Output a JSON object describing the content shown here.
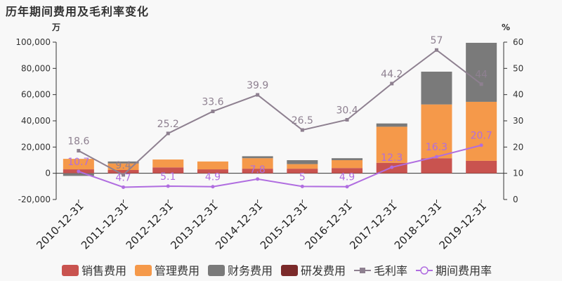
{
  "title": "历年期间费用及毛利率变化",
  "chart_data": {
    "type": "bar",
    "categories": [
      "2010-12-31",
      "2011-12-31",
      "2012-12-31",
      "2013-12-31",
      "2014-12-31",
      "2015-12-31",
      "2016-12-31",
      "2017-12-31",
      "2018-12-31",
      "2019-12-31"
    ],
    "left_axis": {
      "unit": "万",
      "ylim": [
        -20000,
        100000
      ],
      "ticks": [
        "-20,000",
        "0",
        "20,000",
        "40,000",
        "60,000",
        "80,000",
        "100,000"
      ]
    },
    "right_axis": {
      "unit": "%",
      "ylim": [
        0,
        60
      ],
      "ticks": [
        "0",
        "10",
        "20",
        "30",
        "40",
        "50",
        "60"
      ]
    },
    "series": [
      {
        "name": "销售费用",
        "kind": "bar",
        "color": "#c9534f",
        "values": [
          3000,
          2500,
          4500,
          3000,
          3500,
          3500,
          4000,
          8000,
          11500,
          9500
        ]
      },
      {
        "name": "管理费用",
        "kind": "bar",
        "color": "#f5994a",
        "values": [
          8000,
          5000,
          6000,
          6000,
          8000,
          3500,
          6000,
          27500,
          41000,
          45000
        ]
      },
      {
        "name": "财务费用",
        "kind": "bar",
        "color": "#7a7a7a",
        "values": [
          -2000,
          1500,
          0,
          0,
          1500,
          3000,
          1500,
          2500,
          25000,
          45000
        ]
      },
      {
        "name": "研发费用",
        "kind": "bar",
        "color": "#7b2a2a",
        "values": [
          0,
          0,
          0,
          0,
          0,
          0,
          0,
          0,
          0,
          0
        ]
      },
      {
        "name": "毛利率",
        "kind": "line",
        "axis": "right",
        "color": "#8e8090",
        "values": [
          18.6,
          9.4,
          25.2,
          33.6,
          39.9,
          26.5,
          30.4,
          44.2,
          57,
          44
        ],
        "labels": [
          "18.6",
          "9.4",
          "25.2",
          "33.6",
          "39.9",
          "26.5",
          "30.4",
          "44.2",
          "57",
          "44"
        ]
      },
      {
        "name": "期间费用率",
        "kind": "line",
        "axis": "right",
        "color": "#b06de0",
        "values": [
          10.7,
          4.7,
          5.1,
          4.9,
          7.8,
          5,
          4.9,
          12.3,
          16.3,
          20.7
        ],
        "labels": [
          "10.7",
          "4.7",
          "5.1",
          "4.9",
          "7.8",
          "5",
          "4.9",
          "12.3",
          "16.3",
          "20.7"
        ]
      }
    ],
    "legend_position": "bottom",
    "grid": false
  }
}
